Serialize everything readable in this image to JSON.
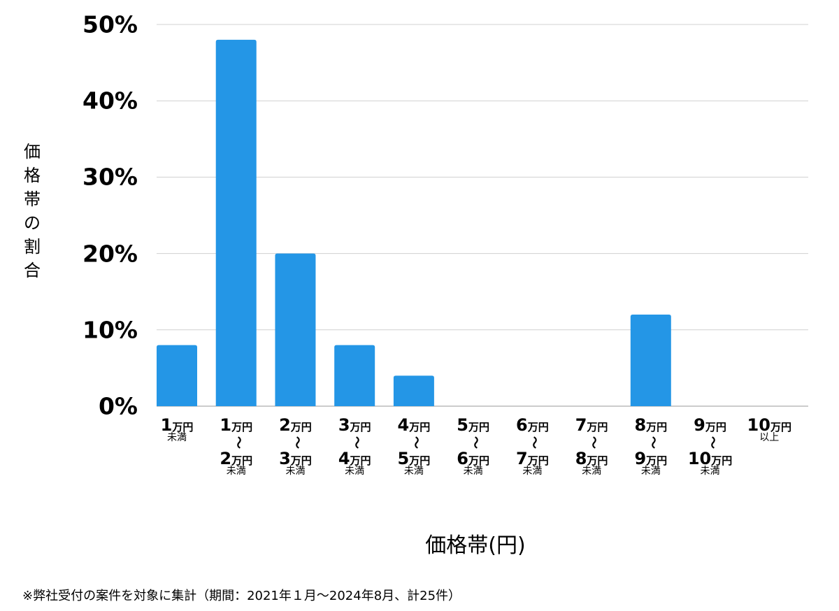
{
  "chart_data": {
    "type": "bar",
    "ylabel": "価格帯の割合",
    "xlabel": "価格帯(円)",
    "ylim": [
      0,
      50
    ],
    "yticks": [
      "0%",
      "10%",
      "20%",
      "30%",
      "40%",
      "50%"
    ],
    "grid": true,
    "bar_color": "#2496e6",
    "unit": "万円",
    "tilde": "～",
    "categories": [
      {
        "from": "1",
        "to": "",
        "note": "未満"
      },
      {
        "from": "1",
        "to": "2",
        "note": "未満"
      },
      {
        "from": "2",
        "to": "3",
        "note": "未満"
      },
      {
        "from": "3",
        "to": "4",
        "note": "未満"
      },
      {
        "from": "4",
        "to": "5",
        "note": "未満"
      },
      {
        "from": "5",
        "to": "6",
        "note": "未満"
      },
      {
        "from": "6",
        "to": "7",
        "note": "未満"
      },
      {
        "from": "7",
        "to": "8",
        "note": "未満"
      },
      {
        "from": "8",
        "to": "9",
        "note": "未満"
      },
      {
        "from": "9",
        "to": "10",
        "note": "未満"
      },
      {
        "from": "10",
        "to": "",
        "note": "以上"
      }
    ],
    "values": [
      8,
      48,
      20,
      8,
      4,
      0,
      0,
      0,
      12,
      0,
      0
    ]
  },
  "footnote": "※弊社受付の案件を対象に集計（期間：2021年１月～2024年8月、計25件）"
}
